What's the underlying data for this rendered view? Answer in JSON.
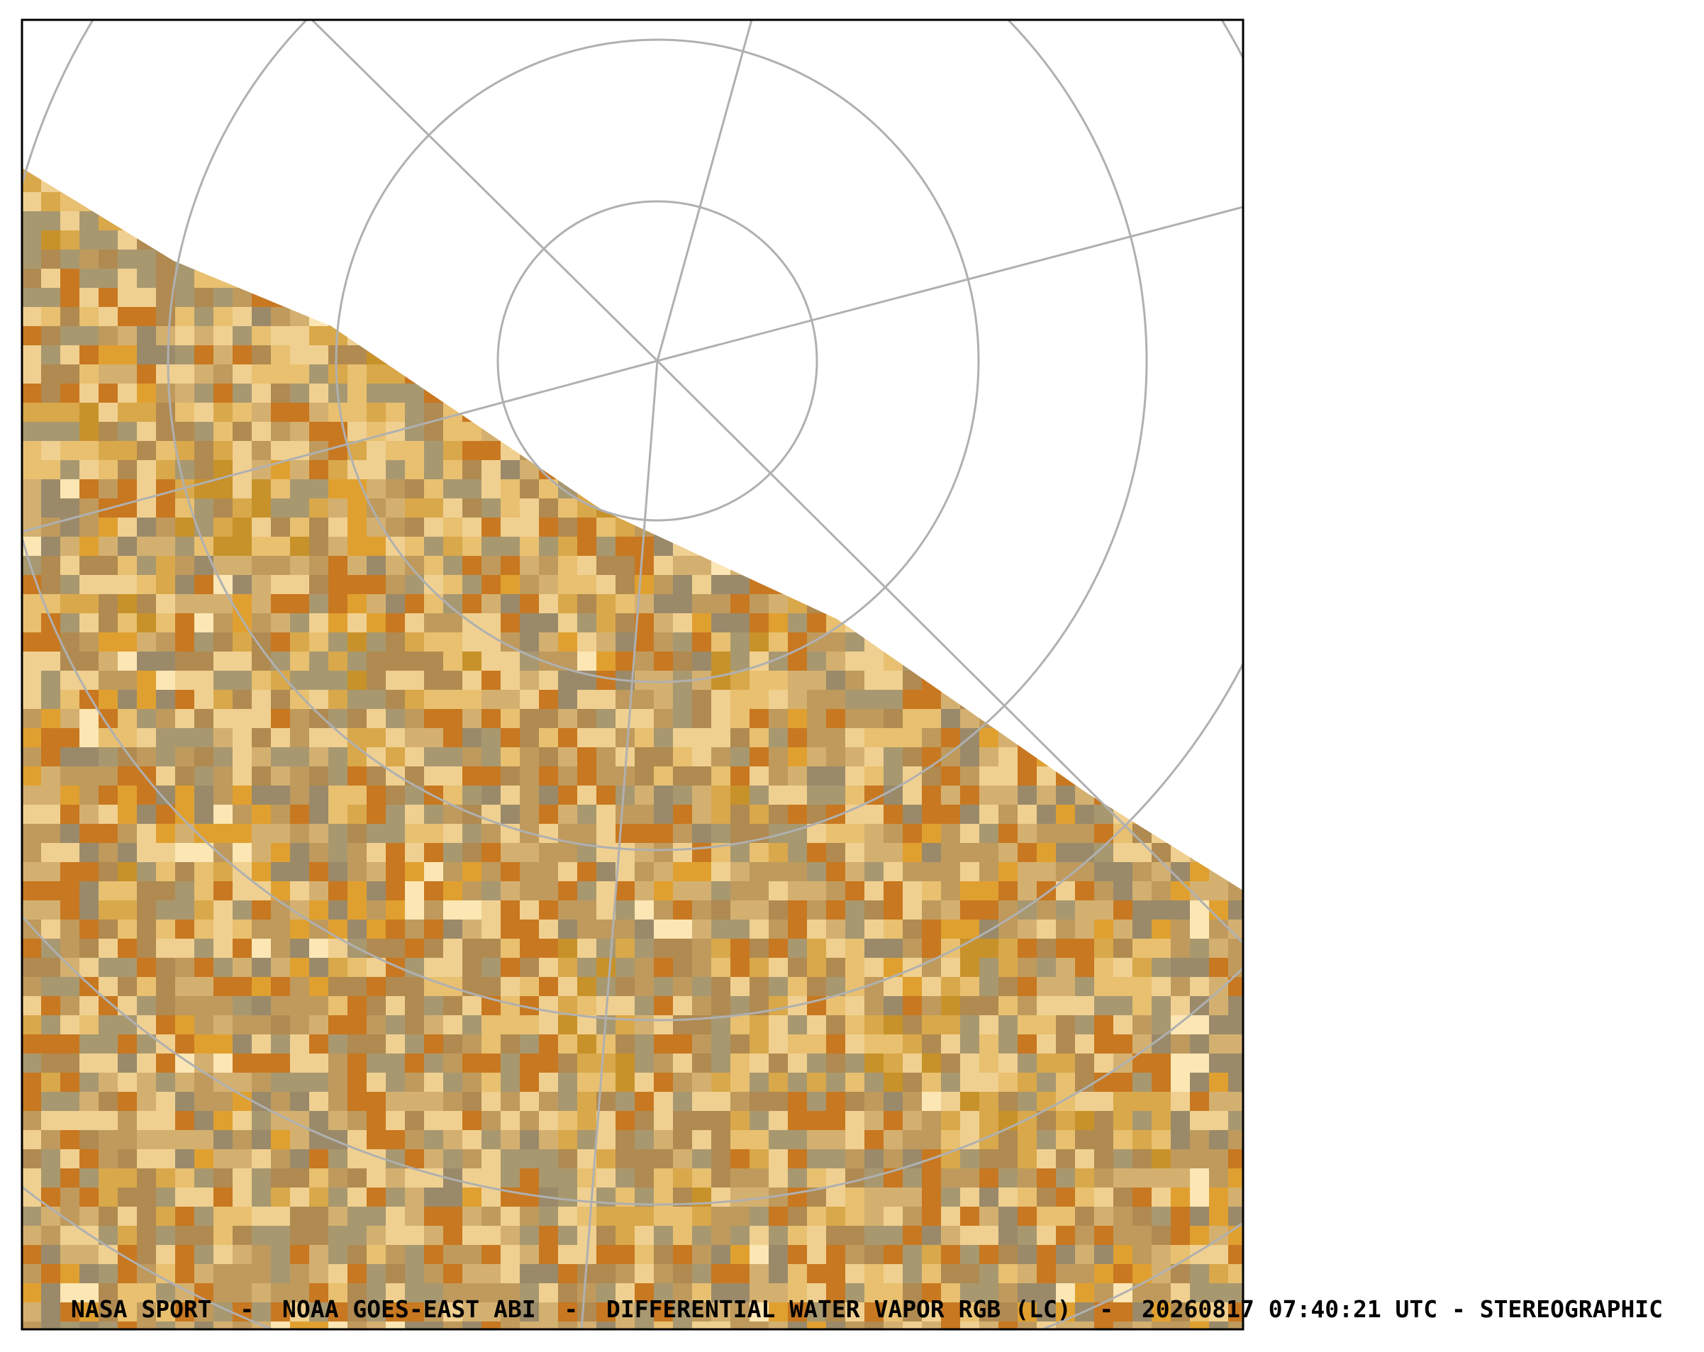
{
  "caption": "NASA SPORT  -  NOAA GOES-EAST ABI  -  DIFFERENTIAL WATER VAPOR RGB (LC)  -  20260817 07:40:21 UTC - STEREOGRAPHIC"
}
